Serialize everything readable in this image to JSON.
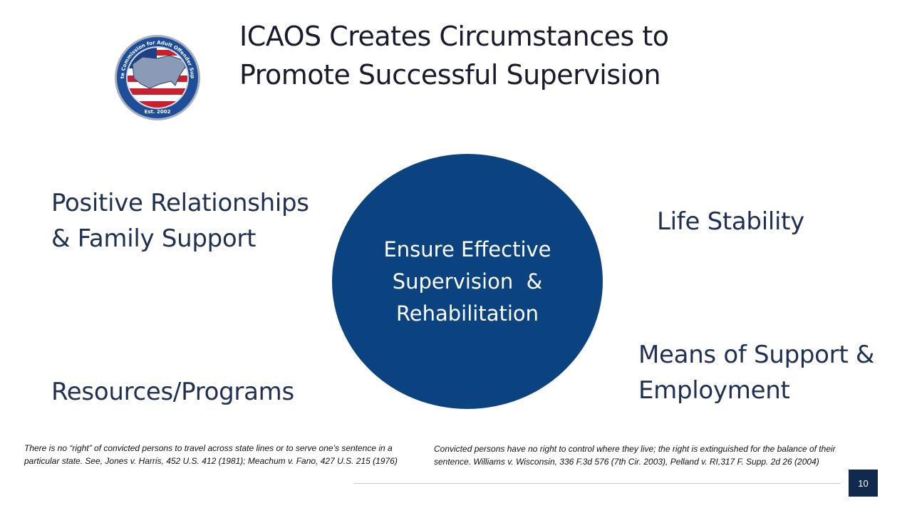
{
  "slide": {
    "title_lines": [
      "ICAOS Creates Circumstances to",
      "Promote Successful Supervision"
    ],
    "logo": {
      "ring_text": "Interstate Commission for Adult Offender Supervision",
      "bottom_text": "Est. 2002"
    },
    "center": {
      "lines": [
        "Ensure Effective",
        "Supervision  &",
        "Rehabilitation"
      ]
    },
    "pillars": {
      "relationships": [
        "Positive Relationships",
        "& Family Support"
      ],
      "stability": [
        "Life Stability"
      ],
      "resources": [
        "Resources/Programs"
      ],
      "means": [
        "Means of Support &",
        "Employment"
      ]
    },
    "notes": {
      "left": "There is no “right” of convicted persons to travel across state lines or to serve one’s sentence in a particular state.  See, Jones v. Harris, 452 U.S. 412 (1981); Meachum v. Fano, 427 U.S. 215 (1976)",
      "right": "Convicted persons have no right to control where they live; the right is extinguished for the balance of their sentence.  Williams v. Wisconsin,  336 F.3d 576 (7th Cir. 2003), Pelland v. RI,317 F. Supp. 2d 26 (2004)"
    },
    "page_number": "10"
  },
  "colors": {
    "circle": "#0b4381",
    "text": "#1f3052",
    "page_badge": "#0f2a4d"
  }
}
